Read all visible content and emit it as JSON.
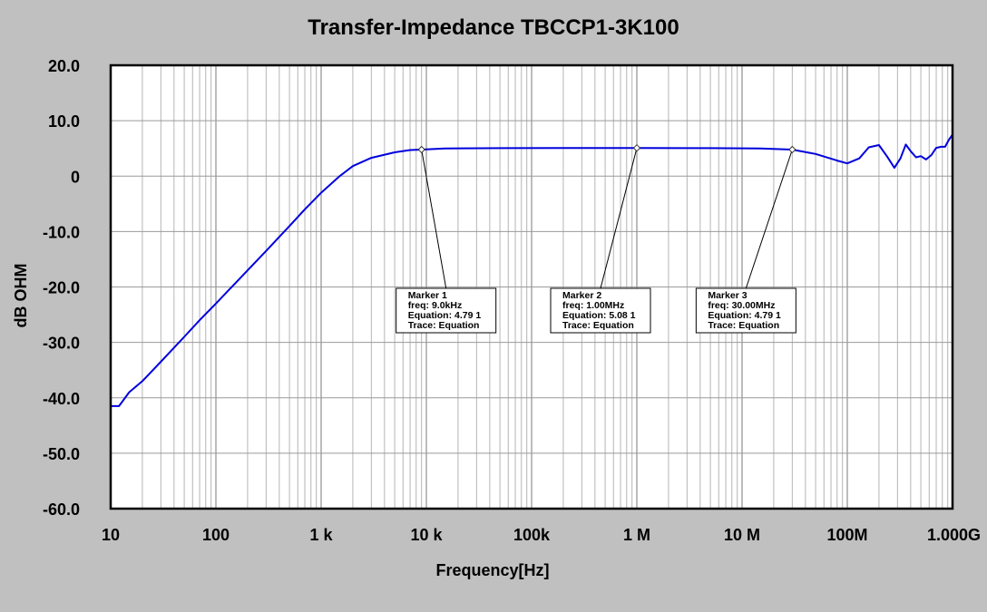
{
  "chart_data": {
    "type": "line",
    "title": "Transfer-Impedance TBCCP1-3K100",
    "xlabel": "Frequency[Hz]",
    "ylabel": "dB OHM",
    "x_scale": "log",
    "xlim": [
      10,
      1000000000
    ],
    "ylim": [
      -60,
      20
    ],
    "grid": true,
    "x_ticks": [
      {
        "value": 10,
        "label": "10"
      },
      {
        "value": 100,
        "label": "100"
      },
      {
        "value": 1000,
        "label": "1  k"
      },
      {
        "value": 10000,
        "label": "10 k"
      },
      {
        "value": 100000,
        "label": "100k"
      },
      {
        "value": 1000000,
        "label": "1  M"
      },
      {
        "value": 10000000,
        "label": "10 M"
      },
      {
        "value": 100000000,
        "label": "100M"
      },
      {
        "value": 1000000000,
        "label": "1.000G"
      }
    ],
    "y_ticks": [
      {
        "value": 20,
        "label": "20.0"
      },
      {
        "value": 10,
        "label": "10.0"
      },
      {
        "value": 0,
        "label": "0"
      },
      {
        "value": -10,
        "label": "-10.0"
      },
      {
        "value": -20,
        "label": "-20.0"
      },
      {
        "value": -30,
        "label": "-30.0"
      },
      {
        "value": -40,
        "label": "-40.0"
      },
      {
        "value": -50,
        "label": "-50.0"
      },
      {
        "value": -60,
        "label": "-60.0"
      }
    ],
    "series": [
      {
        "color": "#0000dd",
        "points": [
          [
            10,
            -41.5
          ],
          [
            12,
            -41.5
          ],
          [
            15,
            -39
          ],
          [
            20,
            -37
          ],
          [
            30,
            -33.5
          ],
          [
            50,
            -29
          ],
          [
            70,
            -26
          ],
          [
            100,
            -23
          ],
          [
            200,
            -17
          ],
          [
            300,
            -13.5
          ],
          [
            500,
            -9
          ],
          [
            700,
            -6
          ],
          [
            1000,
            -3
          ],
          [
            1500,
            0
          ],
          [
            2000,
            1.8
          ],
          [
            3000,
            3.3
          ],
          [
            5000,
            4.3
          ],
          [
            7000,
            4.7
          ],
          [
            9000,
            4.79
          ],
          [
            15000,
            5.0
          ],
          [
            50000,
            5.05
          ],
          [
            200000,
            5.08
          ],
          [
            1000000,
            5.08
          ],
          [
            5000000,
            5.05
          ],
          [
            15000000,
            5.0
          ],
          [
            30000000,
            4.79
          ],
          [
            50000000,
            4.0
          ],
          [
            80000000,
            2.8
          ],
          [
            100000000,
            2.3
          ],
          [
            130000000,
            3.2
          ],
          [
            160000000,
            5.2
          ],
          [
            200000000,
            5.6
          ],
          [
            240000000,
            3.5
          ],
          [
            280000000,
            1.5
          ],
          [
            320000000,
            3.2
          ],
          [
            360000000,
            5.7
          ],
          [
            400000000,
            4.5
          ],
          [
            450000000,
            3.4
          ],
          [
            500000000,
            3.6
          ],
          [
            560000000,
            3.0
          ],
          [
            630000000,
            3.8
          ],
          [
            700000000,
            5.1
          ],
          [
            780000000,
            5.3
          ],
          [
            850000000,
            5.3
          ],
          [
            920000000,
            6.5
          ],
          [
            1000000000,
            7.5
          ]
        ]
      }
    ],
    "markers": [
      {
        "x": 9000,
        "y": 4.79,
        "lines": [
          "Marker 1",
          "freq: 9.0kHz",
          "Equation: 4.79 1",
          "Trace: Equation"
        ]
      },
      {
        "x": 1000000,
        "y": 5.08,
        "lines": [
          "Marker 2",
          "freq: 1.00MHz",
          "Equation: 5.08 1",
          "Trace: Equation"
        ]
      },
      {
        "x": 30000000,
        "y": 4.79,
        "lines": [
          "Marker 3",
          "freq: 30.00MHz",
          "Equation: 4.79 1",
          "Trace: Equation"
        ]
      }
    ]
  }
}
